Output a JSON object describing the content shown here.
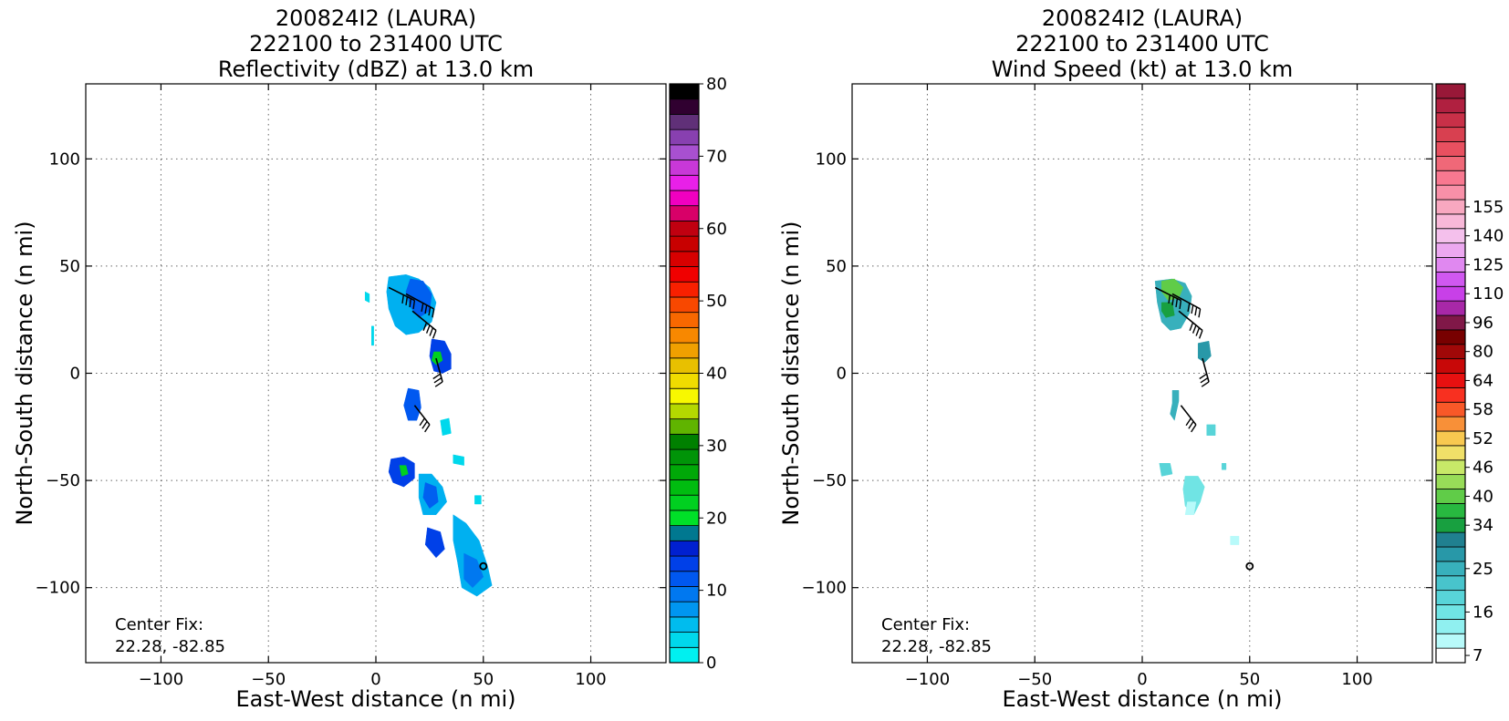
{
  "chart_data": [
    {
      "type": "heatmap",
      "title_lines": [
        "200824I2 (LAURA)",
        "222100 to 231400 UTC",
        "Reflectivity (dBZ) at 13.0 km"
      ],
      "xlabel": "East-West distance (n mi)",
      "ylabel": "North-South distance (n mi)",
      "xlim": [
        -135,
        135
      ],
      "ylim": [
        -135,
        135
      ],
      "xticks": [
        -100,
        -50,
        0,
        50,
        100
      ],
      "yticks": [
        -100,
        -50,
        0,
        50,
        100
      ],
      "xtick_labels": [
        "−100",
        "−50",
        "0",
        "50",
        "100"
      ],
      "ytick_labels": [
        "−100",
        "−50",
        "0",
        "50",
        "100"
      ],
      "grid": true,
      "annotation_lines": [
        "Center Fix:",
        "22.28, -82.85"
      ],
      "center_marker": [
        50,
        -90
      ],
      "colorbar": {
        "label_values": [
          "0",
          "10",
          "20",
          "30",
          "40",
          "50",
          "60",
          "70",
          "80"
        ],
        "colors": [
          "#00f0f0",
          "#00d8ec",
          "#00bcee",
          "#0096f0",
          "#0078f0",
          "#0058f0",
          "#0040e8",
          "#0020d0",
          "#007890",
          "#00e028",
          "#00d020",
          "#00bc10",
          "#00a808",
          "#009408",
          "#008000",
          "#60b400",
          "#b4d800",
          "#f8f800",
          "#f0dc00",
          "#e8c000",
          "#f0a000",
          "#f88800",
          "#f86800",
          "#f84800",
          "#f82000",
          "#f00000",
          "#d80000",
          "#c80000",
          "#c00010",
          "#d80068",
          "#f000c0",
          "#e820e8",
          "#c838d8",
          "#a850d0",
          "#8840b0",
          "#603078",
          "#300030",
          "#000000"
        ]
      },
      "regions": [
        {
          "name": "band-north",
          "color": "#00b0f0",
          "outline": [
            [
              6,
              45
            ],
            [
              14,
              46
            ],
            [
              20,
              44
            ],
            [
              25,
              40
            ],
            [
              28,
              33
            ],
            [
              26,
              24
            ],
            [
              20,
              19
            ],
            [
              14,
              18
            ],
            [
              9,
              22
            ],
            [
              6,
              30
            ],
            [
              5,
              38
            ]
          ]
        },
        {
          "name": "band-north-core",
          "color": "#0060f0",
          "outline": [
            [
              16,
              44
            ],
            [
              22,
              43
            ],
            [
              26,
              37
            ],
            [
              25,
              29
            ],
            [
              20,
              26
            ],
            [
              16,
              31
            ],
            [
              14,
              38
            ]
          ]
        },
        {
          "name": "cell-center",
          "color": "#0040e8",
          "outline": [
            [
              26,
              16
            ],
            [
              32,
              15
            ],
            [
              35,
              9
            ],
            [
              35,
              2
            ],
            [
              31,
              0
            ],
            [
              27,
              1
            ],
            [
              25,
              8
            ]
          ]
        },
        {
          "name": "cell-center-core",
          "color": "#00d020",
          "outline": [
            [
              27,
              10
            ],
            [
              30,
              10
            ],
            [
              31,
              6
            ],
            [
              28,
              4
            ],
            [
              26,
              6
            ]
          ]
        },
        {
          "name": "cell-south",
          "color": "#0058f0",
          "outline": [
            [
              15,
              -7
            ],
            [
              20,
              -8
            ],
            [
              21,
              -16
            ],
            [
              19,
              -22
            ],
            [
              15,
              -22
            ],
            [
              13,
              -15
            ]
          ]
        },
        {
          "name": "cell-west",
          "color": "#0040e8",
          "outline": [
            [
              7,
              -40
            ],
            [
              13,
              -39
            ],
            [
              18,
              -42
            ],
            [
              18,
              -49
            ],
            [
              13,
              -53
            ],
            [
              8,
              -51
            ],
            [
              6,
              -46
            ]
          ]
        },
        {
          "name": "cell-west-core",
          "color": "#00d020",
          "outline": [
            [
              11,
              -43
            ],
            [
              14,
              -43
            ],
            [
              15,
              -47
            ],
            [
              12,
              -48
            ]
          ]
        },
        {
          "name": "band-south-a",
          "color": "#00b0f0",
          "outline": [
            [
              20,
              -47
            ],
            [
              26,
              -47
            ],
            [
              31,
              -53
            ],
            [
              33,
              -60
            ],
            [
              28,
              -66
            ],
            [
              22,
              -66
            ],
            [
              20,
              -58
            ]
          ]
        },
        {
          "name": "band-south-a-core",
          "color": "#0060f0",
          "outline": [
            [
              23,
              -51
            ],
            [
              28,
              -53
            ],
            [
              29,
              -60
            ],
            [
              25,
              -63
            ],
            [
              22,
              -58
            ]
          ]
        },
        {
          "name": "band-south-b",
          "color": "#00b0f0",
          "outline": [
            [
              36,
              -66
            ],
            [
              42,
              -70
            ],
            [
              48,
              -78
            ],
            [
              52,
              -90
            ],
            [
              54,
              -99
            ],
            [
              47,
              -104
            ],
            [
              40,
              -100
            ],
            [
              38,
              -88
            ],
            [
              36,
              -78
            ]
          ]
        },
        {
          "name": "band-south-b-core",
          "color": "#0078f0",
          "outline": [
            [
              41,
              -84
            ],
            [
              47,
              -87
            ],
            [
              50,
              -95
            ],
            [
              45,
              -100
            ],
            [
              41,
              -96
            ]
          ]
        },
        {
          "name": "cell-southwest",
          "color": "#0040e8",
          "outline": [
            [
              24,
              -72
            ],
            [
              30,
              -74
            ],
            [
              32,
              -82
            ],
            [
              28,
              -86
            ],
            [
              23,
              -80
            ]
          ]
        },
        {
          "name": "speck-a",
          "color": "#00d8ec",
          "outline": [
            [
              -5,
              38
            ],
            [
              -3,
              37
            ],
            [
              -3,
              33
            ],
            [
              -5,
              34
            ]
          ]
        },
        {
          "name": "speck-b",
          "color": "#00d8ec",
          "outline": [
            [
              -2,
              22
            ],
            [
              -1,
              22
            ],
            [
              -1,
              13
            ],
            [
              -2,
              13
            ]
          ]
        },
        {
          "name": "speck-c",
          "color": "#00d8ec",
          "outline": [
            [
              30,
              -22
            ],
            [
              34,
              -21
            ],
            [
              35,
              -28
            ],
            [
              31,
              -29
            ]
          ]
        },
        {
          "name": "speck-d",
          "color": "#00d8ec",
          "outline": [
            [
              36,
              -38
            ],
            [
              41,
              -39
            ],
            [
              41,
              -43
            ],
            [
              36,
              -42
            ]
          ]
        },
        {
          "name": "speck-e",
          "color": "#00d8ec",
          "outline": [
            [
              46,
              -57
            ],
            [
              49,
              -57
            ],
            [
              49,
              -61
            ],
            [
              46,
              -61
            ]
          ]
        }
      ],
      "wind_barbs": [
        {
          "x": 6,
          "y": 40,
          "dx": 12,
          "dy": -6,
          "flags": 4
        },
        {
          "x": 14,
          "y": 37,
          "dx": 13,
          "dy": -7,
          "flags": 4
        },
        {
          "x": 17,
          "y": 29,
          "dx": 11,
          "dy": -9,
          "flags": 4
        },
        {
          "x": 28,
          "y": 7,
          "dx": 3,
          "dy": -11,
          "flags": 3
        },
        {
          "x": 18,
          "y": -15,
          "dx": 7,
          "dy": -9,
          "flags": 3
        }
      ]
    },
    {
      "type": "heatmap",
      "title_lines": [
        "200824I2 (LAURA)",
        "222100 to 231400 UTC",
        "Wind Speed (kt) at 13.0 km"
      ],
      "xlabel": "East-West distance (n mi)",
      "ylabel": "North-South distance (n mi)",
      "xlim": [
        -135,
        135
      ],
      "ylim": [
        -135,
        135
      ],
      "xticks": [
        -100,
        -50,
        0,
        50,
        100
      ],
      "yticks": [
        -100,
        -50,
        0,
        50,
        100
      ],
      "xtick_labels": [
        "−100",
        "−50",
        "0",
        "50",
        "100"
      ],
      "ytick_labels": [
        "−100",
        "−50",
        "0",
        "50",
        "100"
      ],
      "grid": true,
      "annotation_lines": [
        "Center Fix:",
        "22.28, -82.85"
      ],
      "center_marker": [
        50,
        -90
      ],
      "colorbar": {
        "label_values": [
          "7",
          "16",
          "25",
          "34",
          "40",
          "46",
          "52",
          "58",
          "64",
          "80",
          "96",
          "110",
          "125",
          "140",
          "155"
        ],
        "label_ticks": [
          0,
          3,
          6,
          9,
          11,
          13,
          15,
          17,
          19,
          21,
          23,
          25,
          27,
          29,
          31
        ],
        "colors": [
          "#ffffff",
          "#b8fafa",
          "#90f0f0",
          "#70e4e4",
          "#58d4d8",
          "#48c4cc",
          "#38b0bc",
          "#2898a8",
          "#208090",
          "#18a040",
          "#28b840",
          "#60cc48",
          "#98dc58",
          "#c8e868",
          "#f0e068",
          "#f8c850",
          "#f89038",
          "#f85828",
          "#f83020",
          "#e81010",
          "#c80808",
          "#a00808",
          "#780000",
          "#801848",
          "#a828a8",
          "#c840e8",
          "#d058f0",
          "#e088f0",
          "#eca8f0",
          "#f4c0ec",
          "#f8b8d8",
          "#f8a8c0",
          "#f890a8",
          "#f87890",
          "#f06878",
          "#e85060",
          "#d84050",
          "#c83048",
          "#b02040",
          "#981838"
        ]
      },
      "regions": [
        {
          "name": "band-north",
          "color": "#38b0bc",
          "outline": [
            [
              6,
              43
            ],
            [
              14,
              44
            ],
            [
              20,
              42
            ],
            [
              23,
              36
            ],
            [
              22,
              28
            ],
            [
              18,
              21
            ],
            [
              13,
              20
            ],
            [
              9,
              24
            ],
            [
              7,
              33
            ]
          ]
        },
        {
          "name": "band-north-light",
          "color": "#60cc48",
          "outline": [
            [
              9,
              43
            ],
            [
              15,
              44
            ],
            [
              19,
              40
            ],
            [
              17,
              35
            ],
            [
              12,
              34
            ],
            [
              9,
              38
            ]
          ]
        },
        {
          "name": "band-north-mid",
          "color": "#18a040",
          "outline": [
            [
              9,
              33
            ],
            [
              14,
              33
            ],
            [
              15,
              27
            ],
            [
              11,
              26
            ],
            [
              9,
              29
            ]
          ]
        },
        {
          "name": "cell-center",
          "color": "#2898a8",
          "outline": [
            [
              26,
              14
            ],
            [
              31,
              15
            ],
            [
              32,
              8
            ],
            [
              29,
              5
            ],
            [
              26,
              7
            ]
          ]
        },
        {
          "name": "cell-south",
          "color": "#38b0bc",
          "outline": [
            [
              14,
              -8
            ],
            [
              17,
              -8
            ],
            [
              17,
              -13
            ],
            [
              15,
              -22
            ],
            [
              13,
              -19
            ],
            [
              14,
              -14
            ]
          ]
        },
        {
          "name": "cell-west",
          "color": "#58d4d8",
          "outline": [
            [
              8,
              -42
            ],
            [
              13,
              -42
            ],
            [
              14,
              -47
            ],
            [
              9,
              -48
            ]
          ]
        },
        {
          "name": "band-south-a",
          "color": "#70e4e4",
          "outline": [
            [
              20,
              -48
            ],
            [
              26,
              -48
            ],
            [
              29,
              -53
            ],
            [
              27,
              -60
            ],
            [
              24,
              -66
            ],
            [
              20,
              -62
            ],
            [
              19,
              -54
            ]
          ]
        },
        {
          "name": "band-south-a-light",
          "color": "#b8fafa",
          "outline": [
            [
              21,
              -60
            ],
            [
              25,
              -60
            ],
            [
              24,
              -66
            ],
            [
              20,
              -66
            ]
          ]
        },
        {
          "name": "speck-a",
          "color": "#58d4d8",
          "outline": [
            [
              30,
              -24
            ],
            [
              34,
              -24
            ],
            [
              34,
              -29
            ],
            [
              30,
              -29
            ]
          ]
        },
        {
          "name": "speck-b",
          "color": "#58d4d8",
          "outline": [
            [
              37,
              -42
            ],
            [
              39,
              -42
            ],
            [
              39,
              -45
            ],
            [
              37,
              -45
            ]
          ]
        },
        {
          "name": "speck-c",
          "color": "#b8fafa",
          "outline": [
            [
              41,
              -76
            ],
            [
              45,
              -76
            ],
            [
              45,
              -80
            ],
            [
              41,
              -80
            ]
          ]
        }
      ],
      "wind_barbs": [
        {
          "x": 6,
          "y": 40,
          "dx": 12,
          "dy": -6,
          "flags": 4
        },
        {
          "x": 14,
          "y": 37,
          "dx": 13,
          "dy": -7,
          "flags": 4
        },
        {
          "x": 17,
          "y": 29,
          "dx": 11,
          "dy": -9,
          "flags": 4
        },
        {
          "x": 28,
          "y": 7,
          "dx": 3,
          "dy": -11,
          "flags": 3
        },
        {
          "x": 18,
          "y": -15,
          "dx": 7,
          "dy": -9,
          "flags": 3
        }
      ]
    }
  ]
}
